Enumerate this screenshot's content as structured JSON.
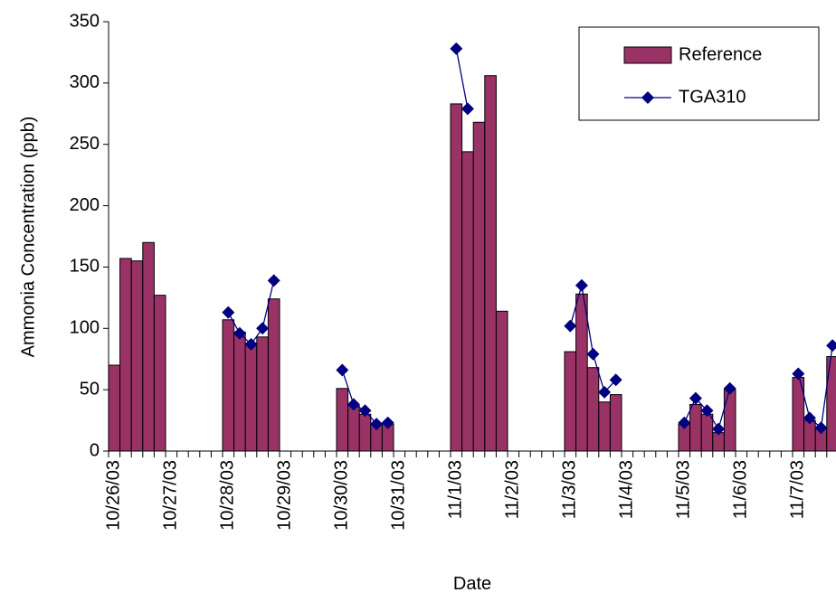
{
  "chart_data": {
    "type": "bar_line",
    "x_label": "Date",
    "y_label": "Ammonia Concentration (ppb)",
    "categories": [
      "10/26/03",
      null,
      null,
      null,
      null,
      "10/27/03",
      null,
      null,
      null,
      null,
      "10/28/03",
      null,
      null,
      null,
      null,
      "10/29/03",
      null,
      null,
      null,
      null,
      "10/30/03",
      null,
      null,
      null,
      null,
      "10/31/03",
      null,
      null,
      null,
      null,
      "11/1/03",
      null,
      null,
      null,
      null,
      "11/2/03",
      null,
      null,
      null,
      null,
      "11/3/03",
      null,
      null,
      null,
      null,
      "11/4/03",
      null,
      null,
      null,
      null,
      "11/5/03",
      null,
      null,
      null,
      null,
      "11/6/03",
      null,
      null,
      null,
      null,
      "11/7/03",
      null,
      null,
      null
    ],
    "series": [
      {
        "name": "Reference",
        "type": "bar",
        "color": "#993366",
        "values": [
          70,
          157,
          155,
          170,
          127,
          null,
          null,
          null,
          null,
          null,
          107,
          97,
          88,
          93,
          124,
          null,
          null,
          null,
          null,
          null,
          51,
          37,
          30,
          22,
          22,
          null,
          null,
          null,
          null,
          null,
          283,
          244,
          268,
          306,
          114,
          null,
          null,
          null,
          null,
          null,
          81,
          128,
          68,
          40,
          46,
          null,
          null,
          null,
          null,
          null,
          22,
          38,
          30,
          15,
          50,
          null,
          null,
          null,
          null,
          null,
          60,
          25,
          18,
          77
        ]
      },
      {
        "name": "TGA310",
        "type": "line",
        "color": "#000080",
        "values": [
          null,
          null,
          null,
          null,
          null,
          null,
          null,
          null,
          null,
          null,
          113,
          96,
          87,
          100,
          139,
          null,
          null,
          null,
          null,
          null,
          66,
          38,
          33,
          22,
          23,
          null,
          null,
          null,
          null,
          null,
          328,
          279,
          null,
          null,
          null,
          null,
          null,
          null,
          null,
          null,
          102,
          135,
          79,
          48,
          58,
          null,
          null,
          null,
          null,
          null,
          23,
          43,
          33,
          18,
          51,
          null,
          null,
          null,
          null,
          null,
          63,
          27,
          19,
          86
        ]
      }
    ],
    "ylim": [
      0,
      350
    ],
    "yticks": [
      0,
      50,
      100,
      150,
      200,
      250,
      300,
      350
    ],
    "legend": "upper-right",
    "grid": false
  }
}
